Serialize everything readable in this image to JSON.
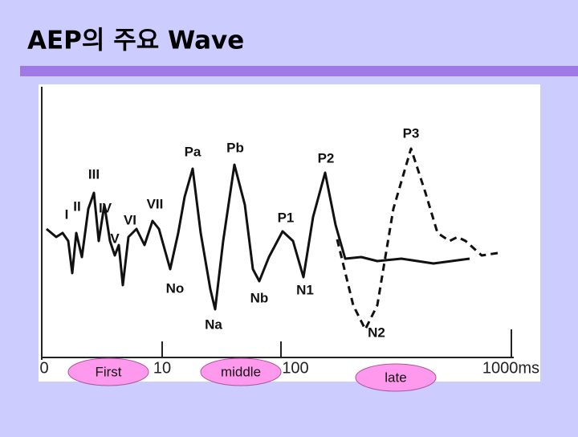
{
  "title": "AEP의 주요 Wave",
  "figure": {
    "peaks": [
      "I",
      "II",
      "III",
      "IV",
      "V",
      "VI",
      "VII",
      "Pa",
      "Pb",
      "No",
      "Na",
      "Nb",
      "P1",
      "N1",
      "P2",
      "N2",
      "P3"
    ],
    "axis_labels": [
      "0",
      "10",
      "100",
      "1000ms"
    ],
    "phases": [
      "First",
      "middle",
      "late"
    ]
  }
}
